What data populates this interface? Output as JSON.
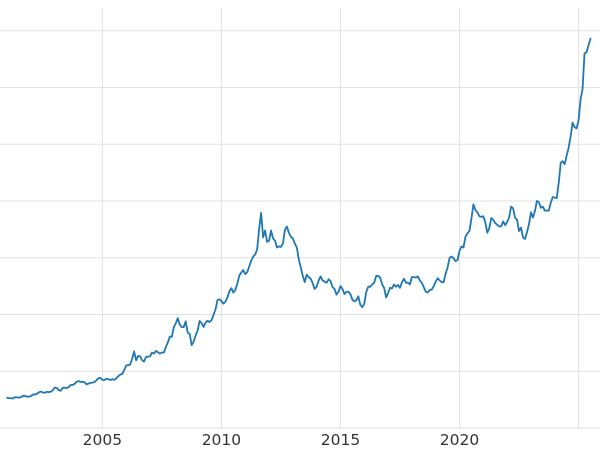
{
  "chart_data": {
    "type": "line",
    "title": "",
    "xlabel": "",
    "ylabel": "",
    "legend": "none",
    "grid": true,
    "background_color": "#ffffff",
    "line_color": "#1f77b4",
    "line_width": 1.8,
    "grid_color": "#e2e2e2",
    "tick_label_color": "#333333",
    "xlim": [
      2000.7,
      2025.9
    ],
    "ylim": [
      0,
      3700
    ],
    "x_tick_labels": [
      "2005",
      "2010",
      "2015",
      "2020"
    ],
    "x_tick_positions": [
      2005,
      2010,
      2015,
      2020
    ],
    "x_gridline_positions": [
      2005,
      2010,
      2015,
      2020,
      2025
    ],
    "y_gridline_values": [
      0,
      500,
      1000,
      1500,
      2000,
      2500,
      3000,
      3500
    ],
    "series": [
      {
        "name": "series_1",
        "cadence": "monthly",
        "start_year": 2001,
        "values": [
          266,
          262,
          263,
          260,
          272,
          270,
          267,
          272,
          284,
          283,
          276,
          276,
          281,
          295,
          294,
          302,
          314,
          321,
          313,
          310,
          319,
          316,
          319,
          333,
          356,
          352,
          334,
          328,
          355,
          356,
          351,
          360,
          379,
          379,
          389,
          407,
          414,
          405,
          408,
          403,
          384,
          392,
          398,
          400,
          405,
          420,
          439,
          442,
          424,
          423,
          434,
          429,
          422,
          430,
          424,
          437,
          456,
          470,
          476,
          510,
          550,
          555,
          557,
          610,
          675,
          596,
          634,
          632,
          598,
          585,
          627,
          629,
          631,
          665,
          655,
          679,
          667,
          655,
          665,
          665,
          713,
          754,
          806,
          803,
          890,
          922,
          968,
          910,
          889,
          889,
          940,
          839,
          829,
          730,
          760,
          816,
          858,
          943,
          924,
          890,
          928,
          946,
          934,
          949,
          996,
          1043,
          1127,
          1134,
          1118,
          1095,
          1113,
          1149,
          1205,
          1232,
          1193,
          1215,
          1271,
          1342,
          1370,
          1391,
          1356,
          1373,
          1424,
          1473,
          1510,
          1528,
          1572,
          1755,
          1895,
          1680,
          1740,
          1640,
          1650,
          1740,
          1670,
          1650,
          1590,
          1600,
          1595,
          1625,
          1745,
          1775,
          1720,
          1685,
          1670,
          1625,
          1590,
          1485,
          1415,
          1340,
          1285,
          1350,
          1330,
          1315,
          1275,
          1225,
          1245,
          1300,
          1335,
          1300,
          1290,
          1280,
          1310,
          1295,
          1240,
          1225,
          1175,
          1200,
          1250,
          1225,
          1180,
          1200,
          1200,
          1180,
          1130,
          1115,
          1125,
          1160,
          1085,
          1065,
          1095,
          1200,
          1245,
          1245,
          1265,
          1280,
          1340,
          1340,
          1325,
          1265,
          1235,
          1150,
          1190,
          1235,
          1230,
          1265,
          1245,
          1260,
          1235,
          1285,
          1315,
          1280,
          1280,
          1265,
          1330,
          1330,
          1325,
          1335,
          1300,
          1280,
          1240,
          1200,
          1195,
          1215,
          1220,
          1250,
          1290,
          1320,
          1300,
          1285,
          1285,
          1360,
          1415,
          1500,
          1510,
          1495,
          1470,
          1480,
          1560,
          1600,
          1590,
          1685,
          1715,
          1735,
          1845,
          1970,
          1920,
          1900,
          1865,
          1860,
          1865,
          1810,
          1720,
          1760,
          1850,
          1835,
          1805,
          1790,
          1775,
          1777,
          1820,
          1787,
          1815,
          1855,
          1950,
          1935,
          1850,
          1835,
          1735,
          1765,
          1680,
          1665,
          1725,
          1795,
          1900,
          1855,
          1910,
          2000,
          1990,
          1940,
          1950,
          1915,
          1915,
          1915,
          1985,
          2035,
          2030,
          2025,
          2160,
          2335,
          2350,
          2325,
          2400,
          2470,
          2570,
          2690,
          2650,
          2640,
          2710,
          2895,
          2985,
          3300,
          3310,
          3370,
          3430
        ]
      }
    ]
  }
}
